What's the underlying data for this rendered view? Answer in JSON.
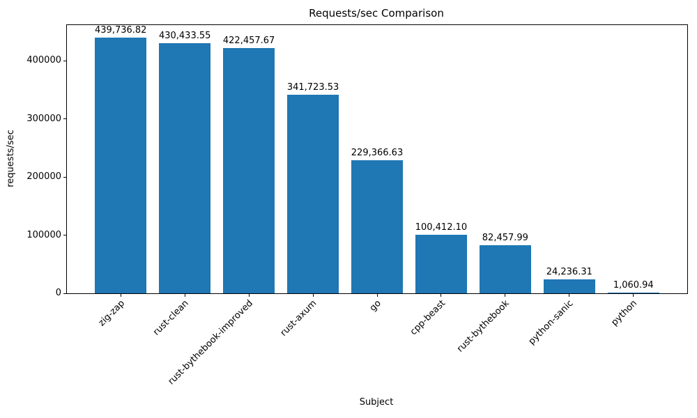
{
  "chart_data": {
    "type": "bar",
    "title": "Requests/sec Comparison",
    "xlabel": "Subject",
    "ylabel": "requests/sec",
    "categories": [
      "zig-zap",
      "rust-clean",
      "rust-bythebook-improved",
      "rust-axum",
      "go",
      "cpp-beast",
      "rust-bythebook",
      "python-sanic",
      "python"
    ],
    "values": [
      439736.82,
      430433.55,
      422457.67,
      341723.53,
      229366.63,
      100412.1,
      82457.99,
      24236.31,
      1060.94
    ],
    "value_labels": [
      "439,736.82",
      "430,433.55",
      "422,457.67",
      "341,723.53",
      "229,366.63",
      "100,412.10",
      "82,457.99",
      "24,236.31",
      "1,060.94"
    ],
    "yticks": [
      0,
      100000,
      200000,
      300000,
      400000
    ],
    "ytick_labels": [
      "0",
      "100000",
      "200000",
      "300000",
      "400000"
    ],
    "ylim": [
      0,
      461723
    ],
    "bar_color": "#1f77b4",
    "grid": false,
    "legend": null
  }
}
